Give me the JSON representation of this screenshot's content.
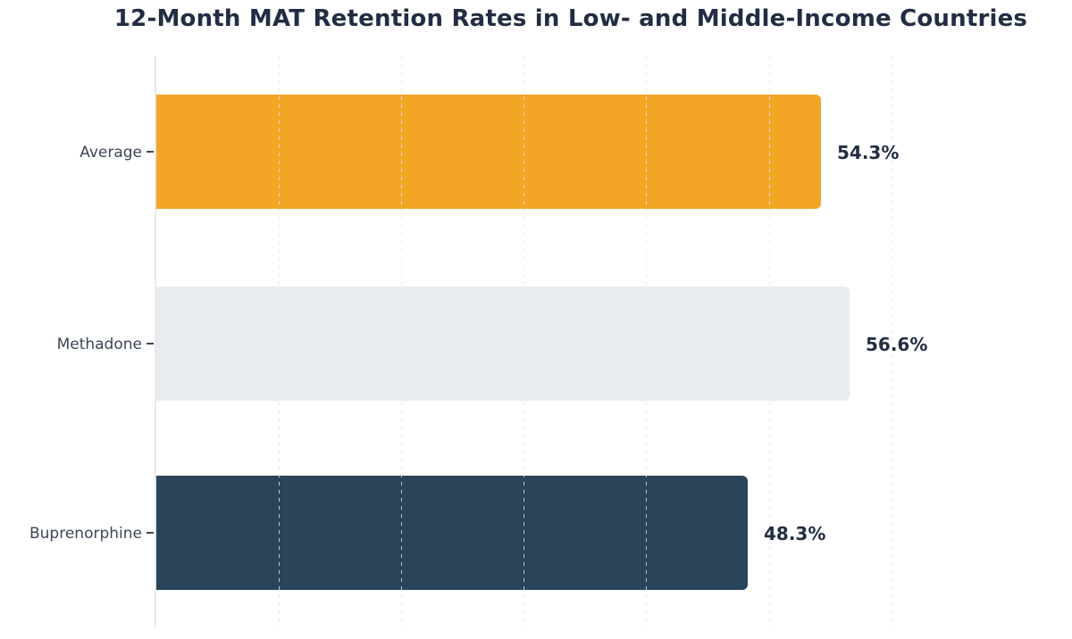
{
  "chart_data": {
    "type": "bar",
    "orientation": "horizontal",
    "title": "12-Month MAT Retention Rates in Low- and Middle-Income Countries",
    "categories": [
      "Average",
      "Methadone",
      "Buprenorphine"
    ],
    "values": [
      54.3,
      56.6,
      48.3
    ],
    "value_labels": [
      "54.3%",
      "56.6%",
      "48.3%"
    ],
    "bar_colors": [
      "#F3A626",
      "#E9EDF2",
      "#2A4459"
    ],
    "xlabel": "",
    "ylabel": "",
    "xlim": [
      0,
      74.8
    ],
    "grid_x": [
      10,
      20,
      30,
      40,
      50,
      60
    ],
    "gridline_style": "dashed-vertical",
    "x_tick_labels_shown": false,
    "legend_position": "none",
    "colors": {
      "background": "#FFFFFF",
      "title_text": "#222D43",
      "value_label_text": "#222D43",
      "category_label_text": "#3C4655",
      "axis_line": "#E6EAEE",
      "gridline": "#DEE4EA"
    }
  }
}
